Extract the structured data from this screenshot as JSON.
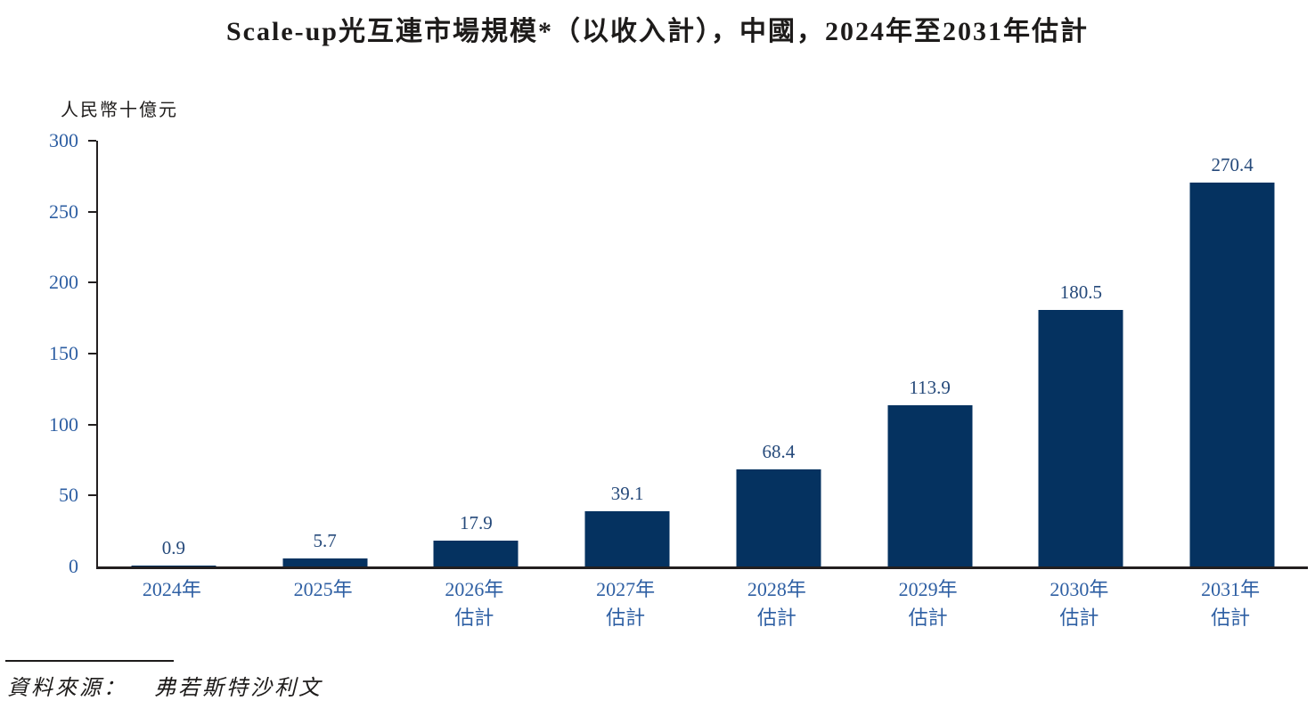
{
  "title": "Scale-up光互連市場規模*（以收入計），中國，2024年至2031年估計",
  "source": {
    "prefix": "資料來源：",
    "name": "弗若斯特沙利文"
  },
  "colors": {
    "bar": "#053260",
    "axis": "#231f20",
    "tick_label": "#2e5fa3",
    "data_label": "#25497a",
    "text": "#1d1b1a"
  },
  "chart_data": {
    "type": "bar",
    "title": "Scale-up光互連市場規模*（以收入計），中國，2024年至2031年估計",
    "ylabel": "人民幣十億元",
    "xlabel": "",
    "categories": [
      "2024年",
      "2025年",
      "2026年估計",
      "2027年估計",
      "2028年估計",
      "2029年估計",
      "2030年估計",
      "2031年估計"
    ],
    "x_tick_lines": [
      [
        "2024年"
      ],
      [
        "2025年"
      ],
      [
        "2026年",
        "估計"
      ],
      [
        "2027年",
        "估計"
      ],
      [
        "2028年",
        "估計"
      ],
      [
        "2029年",
        "估計"
      ],
      [
        "2030年",
        "估計"
      ],
      [
        "2031年",
        "估計"
      ]
    ],
    "values": [
      0.9,
      5.7,
      17.9,
      39.1,
      68.4,
      113.9,
      180.5,
      270.4
    ],
    "labels": [
      "0.9",
      "5.7",
      "17.9",
      "39.1",
      "68.4",
      "113.9",
      "180.5",
      "270.4"
    ],
    "ylim": [
      0,
      300
    ],
    "yticks": [
      0,
      50,
      100,
      150,
      200,
      250,
      300
    ],
    "grid": false,
    "legend_position": "none"
  }
}
